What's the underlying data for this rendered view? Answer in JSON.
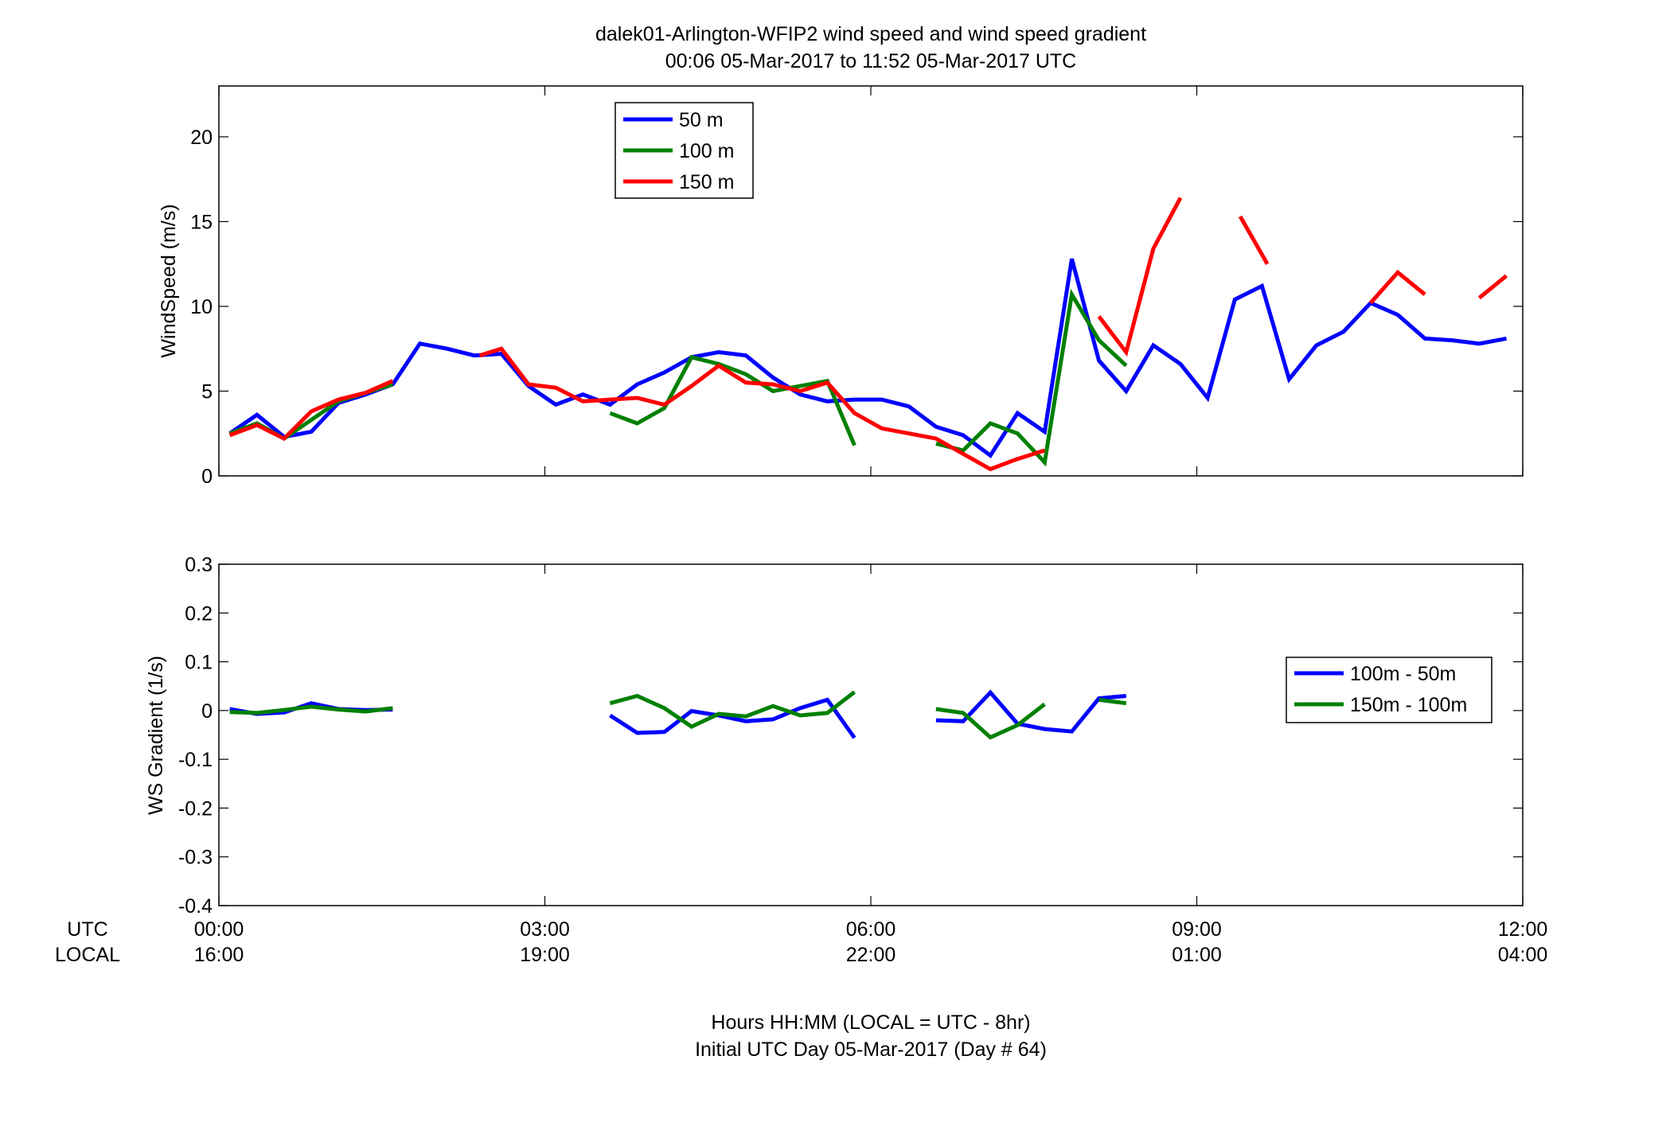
{
  "chart_data": [
    {
      "type": "line",
      "title": "dalek01-Arlington-WFIP2  wind speed and wind speed gradient",
      "subtitle": "00:06 05-Mar-2017 to 11:52 05-Mar-2017  UTC",
      "ylabel": "WindSpeed (m/s)",
      "ylim": [
        0,
        23
      ],
      "yticks": [
        "0",
        "5",
        "10",
        "15",
        "20"
      ],
      "xlim": [
        0,
        12
      ],
      "legend_position": "top-left",
      "series": [
        {
          "name": "50 m",
          "color": "#0000ff",
          "segments": [
            [
              [
                0.1,
                2.5
              ],
              [
                0.35,
                3.6
              ],
              [
                0.6,
                2.3
              ],
              [
                0.85,
                2.6
              ],
              [
                1.1,
                4.3
              ],
              [
                1.35,
                4.8
              ],
              [
                1.6,
                5.4
              ],
              [
                1.85,
                7.8
              ],
              [
                2.1,
                7.5
              ],
              [
                2.35,
                7.1
              ],
              [
                2.6,
                7.2
              ],
              [
                2.85,
                5.3
              ],
              [
                3.1,
                4.2
              ],
              [
                3.35,
                4.8
              ],
              [
                3.6,
                4.2
              ],
              [
                3.85,
                5.4
              ],
              [
                4.1,
                6.1
              ],
              [
                4.35,
                7.0
              ],
              [
                4.6,
                7.3
              ],
              [
                4.85,
                7.1
              ],
              [
                5.1,
                5.8
              ],
              [
                5.35,
                4.8
              ],
              [
                5.6,
                4.4
              ],
              [
                5.85,
                4.5
              ],
              [
                6.1,
                4.5
              ],
              [
                6.35,
                4.1
              ],
              [
                6.6,
                2.9
              ],
              [
                6.85,
                2.4
              ],
              [
                7.1,
                1.2
              ],
              [
                7.35,
                3.7
              ],
              [
                7.6,
                2.6
              ],
              [
                7.85,
                12.8
              ],
              [
                8.1,
                6.8
              ],
              [
                8.35,
                5.0
              ],
              [
                8.6,
                7.7
              ],
              [
                8.85,
                6.6
              ],
              [
                9.1,
                4.6
              ],
              [
                9.35,
                10.4
              ],
              [
                9.6,
                11.2
              ],
              [
                9.85,
                5.7
              ],
              [
                10.1,
                7.7
              ],
              [
                10.35,
                8.5
              ],
              [
                10.6,
                10.2
              ],
              [
                10.85,
                9.5
              ],
              [
                11.1,
                8.1
              ],
              [
                11.35,
                8.0
              ],
              [
                11.6,
                7.8
              ],
              [
                11.85,
                8.1
              ]
            ]
          ]
        },
        {
          "name": "100 m",
          "color": "#008000",
          "segments": [
            [
              [
                0.1,
                2.5
              ],
              [
                0.35,
                3.1
              ],
              [
                0.6,
                2.2
              ],
              [
                0.85,
                3.3
              ],
              [
                1.1,
                4.4
              ],
              [
                1.35,
                4.9
              ],
              [
                1.6,
                5.4
              ]
            ],
            [
              [
                3.6,
                3.7
              ],
              [
                3.85,
                3.1
              ],
              [
                4.1,
                4.0
              ],
              [
                4.35,
                7.0
              ],
              [
                4.6,
                6.6
              ],
              [
                4.85,
                6.0
              ],
              [
                5.1,
                5.0
              ],
              [
                5.35,
                5.3
              ],
              [
                5.6,
                5.6
              ],
              [
                5.85,
                1.8
              ]
            ],
            [
              [
                6.6,
                1.9
              ],
              [
                6.85,
                1.5
              ],
              [
                7.1,
                3.1
              ],
              [
                7.35,
                2.5
              ],
              [
                7.6,
                0.8
              ],
              [
                7.85,
                10.7
              ],
              [
                8.1,
                8.0
              ],
              [
                8.35,
                6.5
              ]
            ]
          ]
        },
        {
          "name": "150 m",
          "color": "#ff0000",
          "segments": [
            [
              [
                0.1,
                2.4
              ],
              [
                0.35,
                3.0
              ],
              [
                0.6,
                2.2
              ],
              [
                0.85,
                3.8
              ],
              [
                1.1,
                4.5
              ],
              [
                1.35,
                4.9
              ],
              [
                1.6,
                5.6
              ]
            ],
            [
              [
                2.4,
                7.1
              ],
              [
                2.6,
                7.5
              ],
              [
                2.85,
                5.4
              ],
              [
                3.1,
                5.2
              ],
              [
                3.35,
                4.4
              ],
              [
                3.6,
                4.5
              ],
              [
                3.85,
                4.6
              ],
              [
                4.1,
                4.2
              ],
              [
                4.35,
                5.3
              ],
              [
                4.6,
                6.5
              ],
              [
                4.85,
                5.5
              ],
              [
                5.1,
                5.4
              ],
              [
                5.35,
                5.0
              ],
              [
                5.6,
                5.5
              ],
              [
                5.85,
                3.7
              ],
              [
                6.1,
                2.8
              ],
              [
                6.35,
                2.5
              ],
              [
                6.6,
                2.2
              ],
              [
                6.85,
                1.3
              ],
              [
                7.1,
                0.4
              ],
              [
                7.35,
                1.0
              ],
              [
                7.6,
                1.5
              ]
            ],
            [
              [
                8.1,
                9.4
              ],
              [
                8.35,
                7.3
              ],
              [
                8.6,
                13.4
              ],
              [
                8.85,
                16.4
              ]
            ],
            [
              [
                9.4,
                15.3
              ],
              [
                9.65,
                12.5
              ]
            ],
            [
              [
                10.6,
                10.2
              ],
              [
                10.85,
                12.0
              ],
              [
                11.1,
                10.7
              ]
            ],
            [
              [
                11.6,
                10.5
              ],
              [
                11.85,
                11.8
              ]
            ]
          ]
        }
      ]
    },
    {
      "type": "line",
      "ylabel": "WS Gradient (1/s)",
      "ylim": [
        -0.4,
        0.3
      ],
      "yticks": [
        "-0.4",
        "-0.3",
        "-0.2",
        "-0.1",
        "0",
        "0.1",
        "0.2",
        "0.3"
      ],
      "xlim": [
        0,
        12
      ],
      "xticks_utc": [
        "00:00",
        "03:00",
        "06:00",
        "09:00",
        "12:00"
      ],
      "xticks_local": [
        "16:00",
        "19:00",
        "22:00",
        "01:00",
        "04:00"
      ],
      "row_label_utc": "UTC",
      "row_label_local": "LOCAL",
      "xlabel": "Hours HH:MM  (LOCAL = UTC - 8hr)",
      "xlabel2": "Initial UTC Day 05-Mar-2017 (Day # 64)",
      "legend_position": "right",
      "series": [
        {
          "name": "100m - 50m",
          "color": "#0000ff",
          "segments": [
            [
              [
                0.1,
                0.003
              ],
              [
                0.35,
                -0.007
              ],
              [
                0.6,
                -0.004
              ],
              [
                0.85,
                0.015
              ],
              [
                1.1,
                0.003
              ],
              [
                1.35,
                0.001
              ],
              [
                1.6,
                0.002
              ]
            ],
            [
              [
                3.6,
                -0.01
              ],
              [
                3.85,
                -0.046
              ],
              [
                4.1,
                -0.044
              ],
              [
                4.35,
                -0.001
              ],
              [
                4.6,
                -0.01
              ],
              [
                4.85,
                -0.022
              ],
              [
                5.1,
                -0.018
              ],
              [
                5.35,
                0.005
              ],
              [
                5.6,
                0.022
              ],
              [
                5.85,
                -0.056
              ]
            ],
            [
              [
                6.6,
                -0.02
              ],
              [
                6.85,
                -0.022
              ],
              [
                7.1,
                0.037
              ],
              [
                7.35,
                -0.027
              ],
              [
                7.6,
                -0.038
              ],
              [
                7.85,
                -0.043
              ],
              [
                8.1,
                0.025
              ],
              [
                8.35,
                0.03
              ]
            ]
          ]
        },
        {
          "name": "150m - 100m",
          "color": "#008000",
          "segments": [
            [
              [
                0.1,
                -0.003
              ],
              [
                0.35,
                -0.005
              ],
              [
                0.6,
                0.001
              ],
              [
                0.85,
                0.008
              ],
              [
                1.1,
                0.002
              ],
              [
                1.35,
                -0.002
              ],
              [
                1.6,
                0.005
              ]
            ],
            [
              [
                3.6,
                0.015
              ],
              [
                3.85,
                0.03
              ],
              [
                4.1,
                0.005
              ],
              [
                4.35,
                -0.033
              ],
              [
                4.6,
                -0.007
              ],
              [
                4.85,
                -0.012
              ],
              [
                5.1,
                0.009
              ],
              [
                5.35,
                -0.01
              ],
              [
                5.6,
                -0.005
              ],
              [
                5.85,
                0.038
              ]
            ],
            [
              [
                6.6,
                0.003
              ],
              [
                6.85,
                -0.005
              ],
              [
                7.1,
                -0.055
              ],
              [
                7.35,
                -0.03
              ],
              [
                7.6,
                0.013
              ]
            ],
            [
              [
                8.1,
                0.022
              ],
              [
                8.35,
                0.015
              ]
            ]
          ]
        }
      ]
    }
  ]
}
